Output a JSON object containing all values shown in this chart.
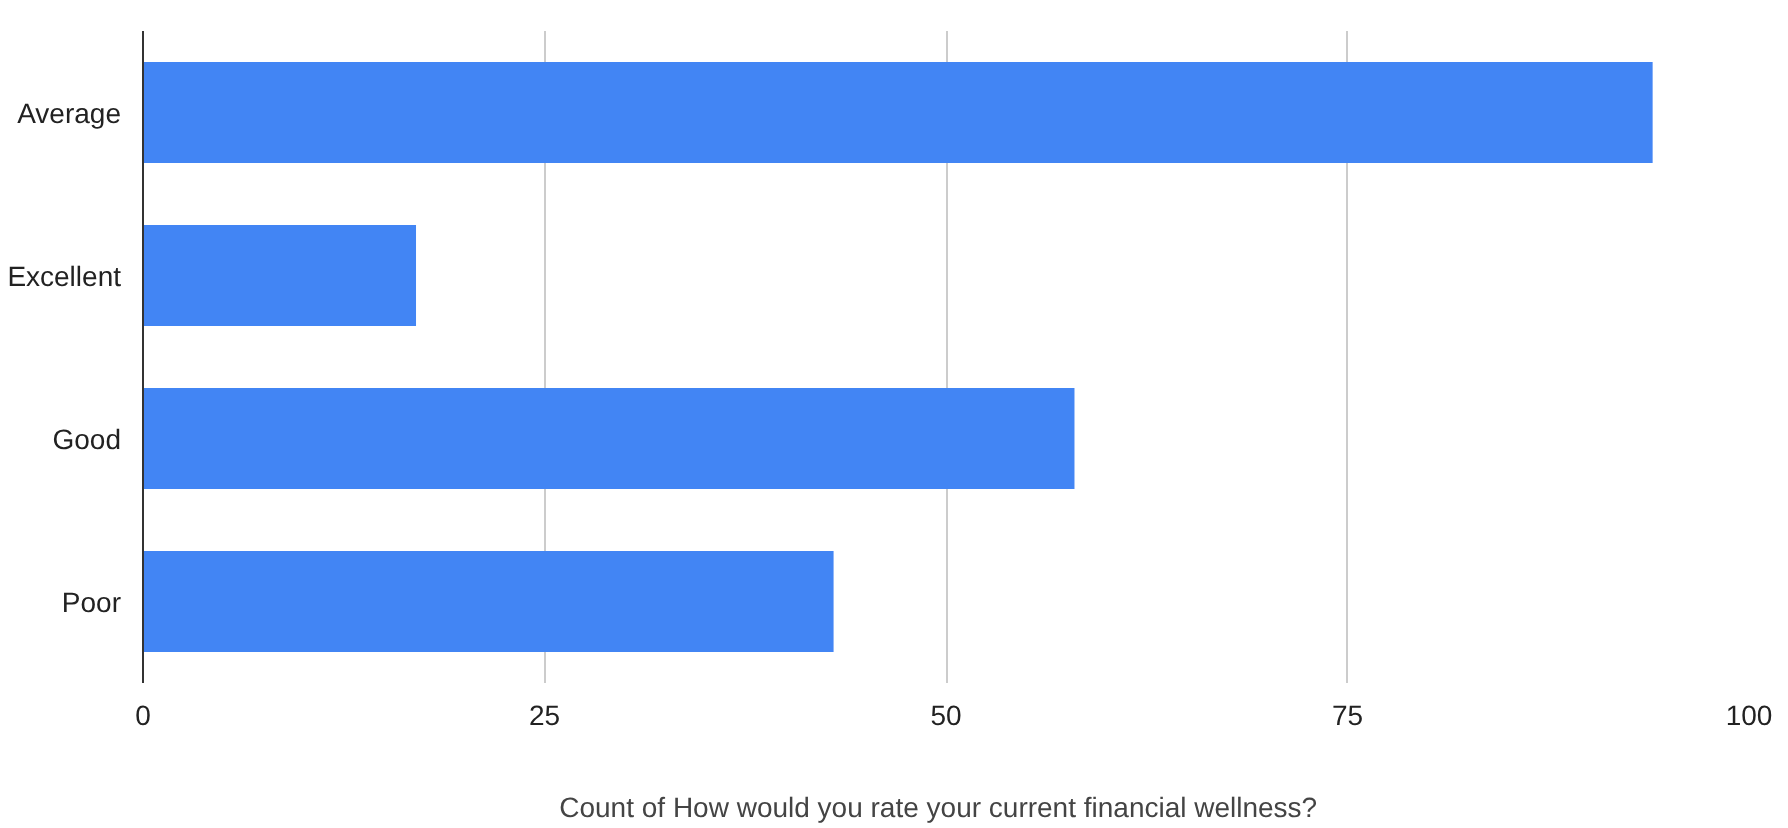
{
  "chart_data": {
    "type": "bar",
    "orientation": "horizontal",
    "xlabel": "Count of   How would you rate your current financial wellness?",
    "categories": [
      "Average",
      "Excellent",
      "Good",
      "Poor"
    ],
    "values": [
      94,
      17,
      58,
      43
    ],
    "color": "#4285f4",
    "xlim": [
      0,
      100
    ],
    "xticks": [
      0,
      25,
      50,
      75,
      100
    ],
    "grid": "x"
  }
}
